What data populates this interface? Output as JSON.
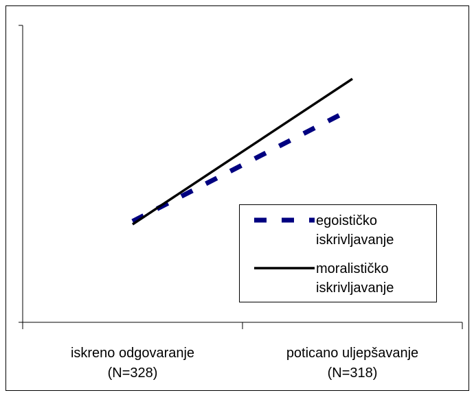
{
  "chart_data": {
    "type": "line",
    "categories": [
      "iskreno odgovaranje (N=328)",
      "poticano uljepšavanje (N=318)"
    ],
    "series": [
      {
        "name": "egoističko iskrivljavanje",
        "color": "#000080",
        "dash": true,
        "values": [
          3.4,
          7.2
        ]
      },
      {
        "name": "moralističko iskrivljavanje",
        "color": "#000000",
        "dash": false,
        "values": [
          3.3,
          8.2
        ]
      }
    ],
    "ylim": [
      0,
      10
    ]
  }
}
